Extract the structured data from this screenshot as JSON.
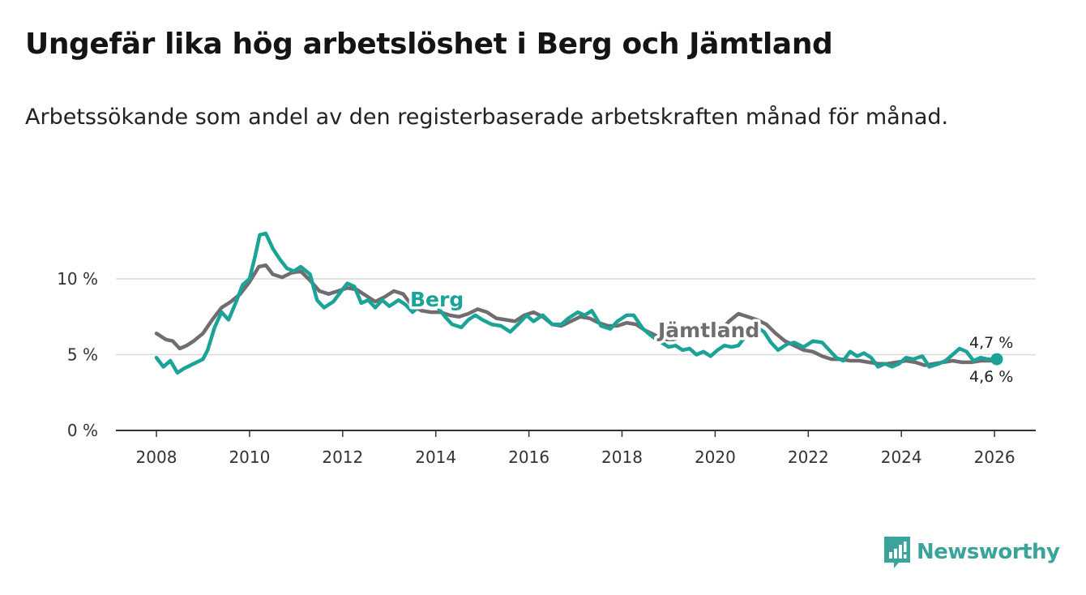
{
  "title": "Ungefär lika hög arbetslöshet i Berg och Jämtland",
  "subtitle": "Arbetssökande som andel av den registerbaserade arbetskraften månad för månad.",
  "brand": {
    "name": "Newsworthy",
    "color": "#3aa39b"
  },
  "chart_data": {
    "type": "line",
    "title": "Ungefär lika hög arbetslöshet i Berg och Jämtland",
    "xlabel": "",
    "ylabel": "",
    "xlim": [
      2007.6,
      2027.0
    ],
    "ylim": [
      0,
      13.5
    ],
    "x_ticks": [
      2008,
      2010,
      2012,
      2014,
      2016,
      2018,
      2020,
      2022,
      2024,
      2026
    ],
    "x_tick_labels": [
      "2008",
      "2010",
      "2012",
      "2014",
      "2016",
      "2018",
      "2020",
      "2022",
      "2024",
      "2026"
    ],
    "y_ticks": [
      0,
      5,
      10
    ],
    "y_tick_labels": [
      "0 %",
      "5 %",
      "10 %"
    ],
    "grid": true,
    "series": [
      {
        "name": "Jämtland",
        "label": "Jämtland",
        "color": "#6f6d70",
        "end_label": "4,6 %",
        "points": [
          [
            2008.0,
            6.4
          ],
          [
            2008.2,
            6.0
          ],
          [
            2008.35,
            5.9
          ],
          [
            2008.5,
            5.4
          ],
          [
            2008.65,
            5.6
          ],
          [
            2008.8,
            5.9
          ],
          [
            2009.0,
            6.4
          ],
          [
            2009.2,
            7.3
          ],
          [
            2009.4,
            8.1
          ],
          [
            2009.6,
            8.5
          ],
          [
            2009.8,
            9.0
          ],
          [
            2010.0,
            9.8
          ],
          [
            2010.2,
            10.8
          ],
          [
            2010.35,
            10.9
          ],
          [
            2010.5,
            10.3
          ],
          [
            2010.7,
            10.1
          ],
          [
            2010.9,
            10.4
          ],
          [
            2011.1,
            10.5
          ],
          [
            2011.3,
            9.9
          ],
          [
            2011.5,
            9.2
          ],
          [
            2011.7,
            9.0
          ],
          [
            2011.9,
            9.2
          ],
          [
            2012.1,
            9.4
          ],
          [
            2012.3,
            9.3
          ],
          [
            2012.5,
            8.9
          ],
          [
            2012.7,
            8.5
          ],
          [
            2012.9,
            8.8
          ],
          [
            2013.1,
            9.2
          ],
          [
            2013.3,
            9.0
          ],
          [
            2013.5,
            8.2
          ],
          [
            2013.7,
            7.9
          ],
          [
            2013.9,
            7.8
          ],
          [
            2014.1,
            7.8
          ],
          [
            2014.3,
            7.6
          ],
          [
            2014.5,
            7.5
          ],
          [
            2014.7,
            7.7
          ],
          [
            2014.9,
            8.0
          ],
          [
            2015.1,
            7.8
          ],
          [
            2015.3,
            7.4
          ],
          [
            2015.5,
            7.3
          ],
          [
            2015.7,
            7.2
          ],
          [
            2015.9,
            7.6
          ],
          [
            2016.1,
            7.8
          ],
          [
            2016.3,
            7.5
          ],
          [
            2016.5,
            7.0
          ],
          [
            2016.7,
            6.9
          ],
          [
            2016.9,
            7.2
          ],
          [
            2017.1,
            7.5
          ],
          [
            2017.3,
            7.4
          ],
          [
            2017.5,
            7.1
          ],
          [
            2017.7,
            6.9
          ],
          [
            2017.9,
            6.9
          ],
          [
            2018.1,
            7.1
          ],
          [
            2018.3,
            7.0
          ],
          [
            2018.5,
            6.6
          ],
          [
            2018.7,
            6.3
          ],
          [
            2018.9,
            6.0
          ],
          [
            2019.1,
            6.0
          ],
          [
            2019.3,
            6.2
          ],
          [
            2019.5,
            6.5
          ],
          [
            2019.7,
            6.6
          ],
          [
            2019.9,
            6.4
          ],
          [
            2020.1,
            6.5
          ],
          [
            2020.3,
            7.2
          ],
          [
            2020.5,
            7.7
          ],
          [
            2020.7,
            7.5
          ],
          [
            2020.9,
            7.3
          ],
          [
            2021.1,
            7.0
          ],
          [
            2021.3,
            6.4
          ],
          [
            2021.5,
            5.9
          ],
          [
            2021.7,
            5.6
          ],
          [
            2021.9,
            5.3
          ],
          [
            2022.1,
            5.2
          ],
          [
            2022.3,
            4.9
          ],
          [
            2022.5,
            4.7
          ],
          [
            2022.7,
            4.7
          ],
          [
            2022.9,
            4.6
          ],
          [
            2023.1,
            4.6
          ],
          [
            2023.3,
            4.5
          ],
          [
            2023.5,
            4.4
          ],
          [
            2023.7,
            4.4
          ],
          [
            2023.9,
            4.5
          ],
          [
            2024.1,
            4.6
          ],
          [
            2024.3,
            4.5
          ],
          [
            2024.5,
            4.3
          ],
          [
            2024.7,
            4.4
          ],
          [
            2024.9,
            4.5
          ],
          [
            2025.1,
            4.6
          ],
          [
            2025.3,
            4.5
          ],
          [
            2025.5,
            4.5
          ],
          [
            2025.7,
            4.6
          ],
          [
            2025.9,
            4.6
          ],
          [
            2026.05,
            4.6
          ]
        ]
      },
      {
        "name": "Berg",
        "label": "Berg",
        "color": "#1aa396",
        "end_label": "4,7 %",
        "points": [
          [
            2008.0,
            4.8
          ],
          [
            2008.15,
            4.2
          ],
          [
            2008.3,
            4.6
          ],
          [
            2008.45,
            3.8
          ],
          [
            2008.6,
            4.1
          ],
          [
            2008.8,
            4.4
          ],
          [
            2009.0,
            4.7
          ],
          [
            2009.1,
            5.3
          ],
          [
            2009.25,
            6.8
          ],
          [
            2009.4,
            7.8
          ],
          [
            2009.55,
            7.3
          ],
          [
            2009.7,
            8.4
          ],
          [
            2009.85,
            9.6
          ],
          [
            2010.0,
            10.0
          ],
          [
            2010.12,
            11.5
          ],
          [
            2010.22,
            12.9
          ],
          [
            2010.35,
            13.0
          ],
          [
            2010.5,
            12.0
          ],
          [
            2010.65,
            11.3
          ],
          [
            2010.8,
            10.7
          ],
          [
            2010.95,
            10.5
          ],
          [
            2011.1,
            10.8
          ],
          [
            2011.3,
            10.3
          ],
          [
            2011.45,
            8.6
          ],
          [
            2011.6,
            8.1
          ],
          [
            2011.8,
            8.5
          ],
          [
            2011.95,
            9.1
          ],
          [
            2012.1,
            9.7
          ],
          [
            2012.25,
            9.5
          ],
          [
            2012.4,
            8.4
          ],
          [
            2012.55,
            8.6
          ],
          [
            2012.7,
            8.1
          ],
          [
            2012.85,
            8.6
          ],
          [
            2013.0,
            8.2
          ],
          [
            2013.2,
            8.6
          ],
          [
            2013.35,
            8.3
          ],
          [
            2013.5,
            7.8
          ],
          [
            2013.65,
            8.2
          ],
          [
            2013.85,
            8.5
          ],
          [
            2014.05,
            8.1
          ],
          [
            2014.2,
            7.5
          ],
          [
            2014.35,
            7.0
          ],
          [
            2014.55,
            6.8
          ],
          [
            2014.7,
            7.3
          ],
          [
            2014.85,
            7.6
          ],
          [
            2015.0,
            7.3
          ],
          [
            2015.2,
            7.0
          ],
          [
            2015.4,
            6.9
          ],
          [
            2015.6,
            6.5
          ],
          [
            2015.8,
            7.1
          ],
          [
            2015.95,
            7.6
          ],
          [
            2016.1,
            7.2
          ],
          [
            2016.3,
            7.6
          ],
          [
            2016.5,
            7.0
          ],
          [
            2016.7,
            7.0
          ],
          [
            2016.85,
            7.4
          ],
          [
            2017.05,
            7.8
          ],
          [
            2017.2,
            7.6
          ],
          [
            2017.35,
            7.9
          ],
          [
            2017.55,
            6.9
          ],
          [
            2017.75,
            6.7
          ],
          [
            2017.9,
            7.2
          ],
          [
            2018.1,
            7.6
          ],
          [
            2018.25,
            7.6
          ],
          [
            2018.45,
            6.7
          ],
          [
            2018.65,
            6.2
          ],
          [
            2018.85,
            5.8
          ],
          [
            2019.0,
            5.5
          ],
          [
            2019.15,
            5.6
          ],
          [
            2019.3,
            5.3
          ],
          [
            2019.45,
            5.4
          ],
          [
            2019.6,
            5.0
          ],
          [
            2019.75,
            5.2
          ],
          [
            2019.9,
            4.9
          ],
          [
            2020.05,
            5.3
          ],
          [
            2020.2,
            5.6
          ],
          [
            2020.35,
            5.5
          ],
          [
            2020.5,
            5.6
          ],
          [
            2020.7,
            6.4
          ],
          [
            2020.85,
            6.9
          ],
          [
            2021.05,
            6.5
          ],
          [
            2021.2,
            5.8
          ],
          [
            2021.35,
            5.3
          ],
          [
            2021.55,
            5.7
          ],
          [
            2021.7,
            5.8
          ],
          [
            2021.9,
            5.5
          ],
          [
            2022.1,
            5.9
          ],
          [
            2022.3,
            5.8
          ],
          [
            2022.45,
            5.3
          ],
          [
            2022.6,
            4.8
          ],
          [
            2022.75,
            4.6
          ],
          [
            2022.9,
            5.2
          ],
          [
            2023.05,
            4.9
          ],
          [
            2023.2,
            5.1
          ],
          [
            2023.35,
            4.8
          ],
          [
            2023.5,
            4.2
          ],
          [
            2023.65,
            4.4
          ],
          [
            2023.8,
            4.2
          ],
          [
            2023.95,
            4.4
          ],
          [
            2024.1,
            4.8
          ],
          [
            2024.25,
            4.7
          ],
          [
            2024.45,
            4.9
          ],
          [
            2024.6,
            4.2
          ],
          [
            2024.8,
            4.4
          ],
          [
            2024.95,
            4.6
          ],
          [
            2025.1,
            5.0
          ],
          [
            2025.25,
            5.4
          ],
          [
            2025.4,
            5.2
          ],
          [
            2025.55,
            4.6
          ],
          [
            2025.7,
            4.8
          ],
          [
            2025.85,
            4.7
          ],
          [
            2026.05,
            4.7
          ]
        ]
      }
    ]
  }
}
